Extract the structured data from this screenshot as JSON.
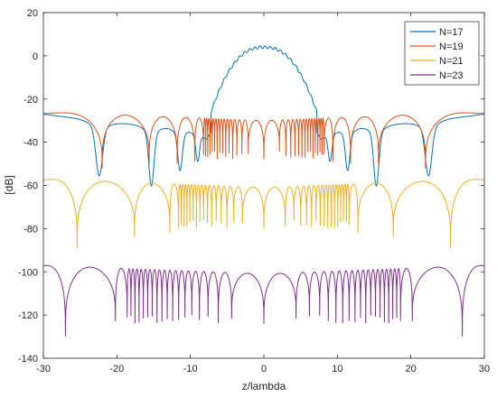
{
  "chart_data": {
    "type": "line",
    "xlabel": "z/lambda",
    "ylabel": "[dB]",
    "xlim": [
      -30,
      30
    ],
    "ylim": [
      -140,
      20
    ],
    "xticks": [
      -30,
      -20,
      -10,
      0,
      10,
      20,
      30
    ],
    "yticks": [
      20,
      0,
      -20,
      -40,
      -60,
      -80,
      -100,
      -120,
      -140
    ],
    "grid": false,
    "box": true,
    "legend_position": "top-right",
    "series": [
      {
        "name": "N=17",
        "color": "#0072BD",
        "profile": {
          "main_lobe_peak": 4,
          "main_lobe_edge": -26,
          "main_lobe_halfwidth": 7.2,
          "base_far": -27,
          "base_near": -34,
          "deep_nulls": [
            {
              "z": -22.4,
              "depth": -55,
              "width": 1.8
            },
            {
              "z": -15.3,
              "depth": -60,
              "width": 1.4
            },
            {
              "z": -11.4,
              "depth": -52,
              "width": 1.2
            },
            {
              "z": -9.0,
              "depth": -47,
              "width": 1.0
            },
            {
              "z": -7.8,
              "depth": -35,
              "width": 0.7
            },
            {
              "z": 7.8,
              "depth": -35,
              "width": 0.7
            },
            {
              "z": 9.0,
              "depth": -47,
              "width": 1.0
            },
            {
              "z": 11.4,
              "depth": -52,
              "width": 1.2
            },
            {
              "z": 15.3,
              "depth": -60,
              "width": 1.4
            },
            {
              "z": 22.4,
              "depth": -55,
              "width": 1.8
            }
          ]
        }
      },
      {
        "name": "N=19",
        "color": "#D95319",
        "profile": {
          "peak_center": -30,
          "peak_edge": -26,
          "shallow_null": -37,
          "deep_nulls": [
            {
              "z": -22.0,
              "depth": -52
            },
            {
              "z": -15.6,
              "depth": -50
            },
            {
              "z": -11.8,
              "depth": -50
            },
            {
              "z": -9.4,
              "depth": -49
            },
            {
              "z": 9.4,
              "depth": -49
            },
            {
              "z": 11.8,
              "depth": -50
            },
            {
              "z": 15.6,
              "depth": -50
            },
            {
              "z": 22.0,
              "depth": -52
            }
          ],
          "center_null_depth": -48
        }
      },
      {
        "name": "N=21",
        "color": "#EDB120",
        "profile": {
          "peak_center": -61,
          "peak_edge": -57,
          "shallow_null": -68,
          "deep_nulls": [
            {
              "z": -25.4,
              "depth": -89
            },
            {
              "z": -17.6,
              "depth": -84
            },
            {
              "z": -12.8,
              "depth": -82
            },
            {
              "z": 12.8,
              "depth": -82
            },
            {
              "z": 17.6,
              "depth": -84
            },
            {
              "z": 25.4,
              "depth": -89
            }
          ],
          "center_null_depth": -80
        }
      },
      {
        "name": "N=23",
        "color": "#7E2F8E",
        "profile": {
          "peak_center": -101,
          "peak_edge": -97,
          "shallow_null": -109,
          "deep_nulls": [
            {
              "z": -27.0,
              "depth": -130
            },
            {
              "z": -20.2,
              "depth": -123
            },
            {
              "z": 20.2,
              "depth": -123
            },
            {
              "z": 27.0,
              "depth": -130
            }
          ],
          "center_null_depth": -124
        }
      }
    ]
  }
}
